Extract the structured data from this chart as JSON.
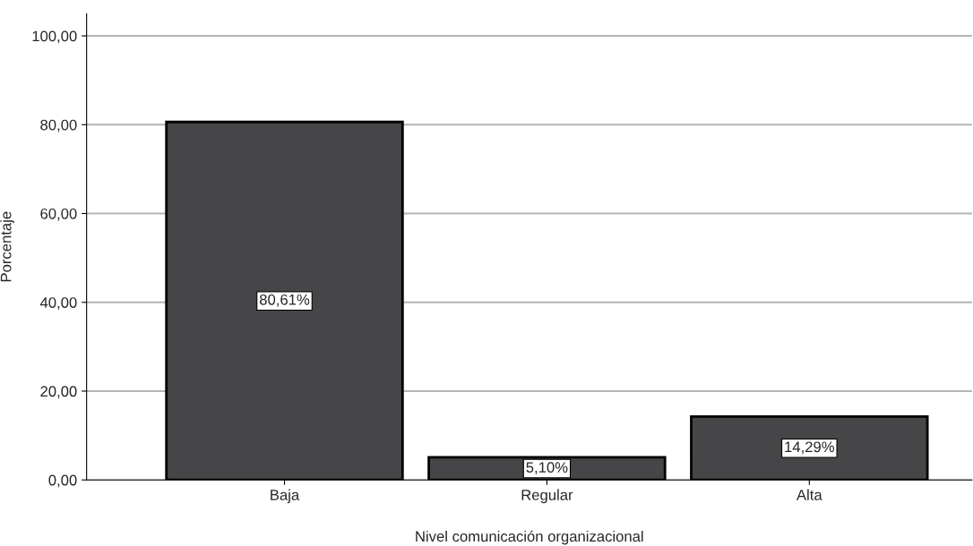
{
  "chart_data": {
    "type": "bar",
    "xlabel": "Nivel comunicación organizacional",
    "ylabel": "Porcentaje",
    "categories": [
      "Baja",
      "Regular",
      "Alta"
    ],
    "values": [
      80.61,
      5.1,
      14.29
    ],
    "value_labels": [
      "80,61%",
      "5,10%",
      "14,29%"
    ],
    "color": "#464648",
    "ylim": [
      0,
      105
    ],
    "yticks": [
      {
        "value": 0,
        "label": "0,00"
      },
      {
        "value": 20,
        "label": "20,00"
      },
      {
        "value": 40,
        "label": "40,00"
      },
      {
        "value": 60,
        "label": "60,00"
      },
      {
        "value": 80,
        "label": "80,00"
      },
      {
        "value": 100,
        "label": "100,00"
      }
    ],
    "grid": "y"
  }
}
